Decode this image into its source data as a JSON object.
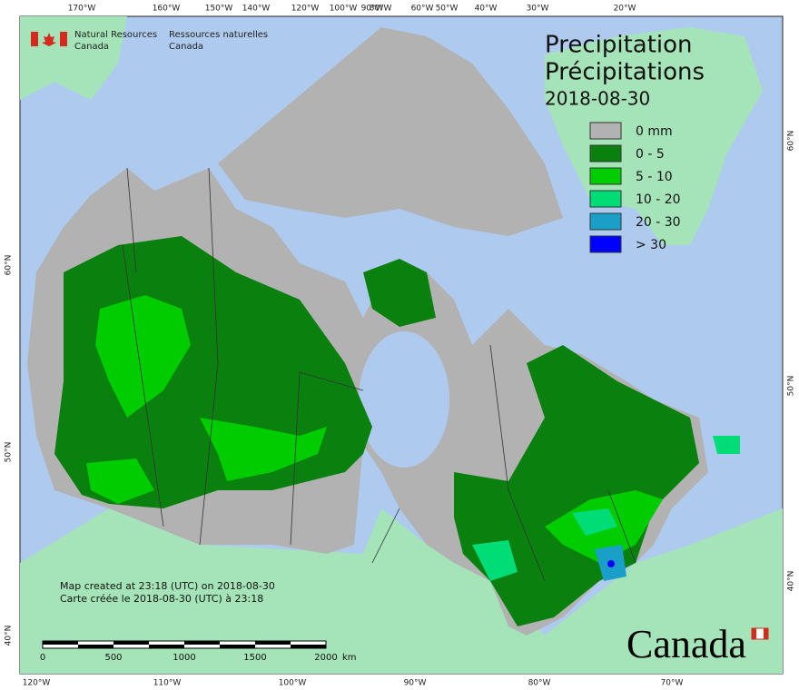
{
  "header": {
    "nrcan_en": [
      "Natural Resources",
      "Canada"
    ],
    "nrcan_fr": [
      "Ressources naturelles",
      "Canada"
    ]
  },
  "title": [
    "Precipitation",
    "Précipitations"
  ],
  "date": "2018-08-30",
  "legend": [
    {
      "label": "0 mm",
      "color": "#b2b2b2"
    },
    {
      "label": "0 - 5",
      "color": "#0a800f"
    },
    {
      "label": "5 - 10",
      "color": "#00cc00"
    },
    {
      "label": "10 - 20",
      "color": "#00dd77"
    },
    {
      "label": "20 - 30",
      "color": "#1aa0c8"
    },
    {
      "label": "> 30",
      "color": "#0000ff"
    }
  ],
  "graticule": {
    "top": [
      "170°W",
      "160°W",
      "150°W",
      "140°W",
      "120°W",
      "100°W",
      "90°W",
      "80°W",
      "60°W",
      "50°W",
      "40°W",
      "30°W",
      "20°W"
    ],
    "bottom": [
      "120°W",
      "110°W",
      "100°W",
      "90°W",
      "80°W",
      "70°W"
    ],
    "left": [
      "60°N",
      "50°N",
      "40°N"
    ],
    "right": [
      "60°N",
      "50°N",
      "40°N"
    ]
  },
  "notes": [
    "Map created at 23:18 (UTC) on 2018-08-30",
    "Carte créée le 2018-08-30 (UTC) à 23:18"
  ],
  "scale": {
    "labels": [
      "0",
      "500",
      "1000",
      "1500",
      "2000"
    ],
    "unit": "km"
  },
  "wordmark": "Canada"
}
